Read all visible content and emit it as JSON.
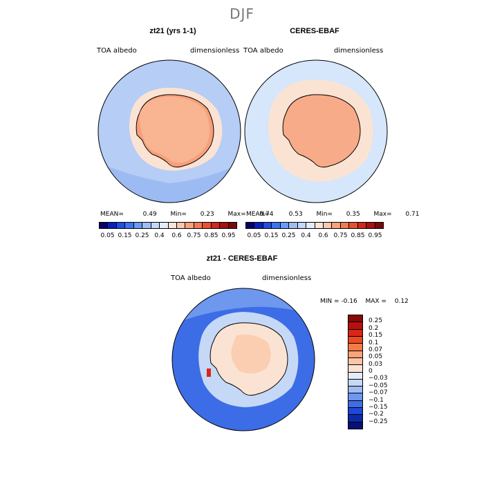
{
  "season": "DJF",
  "panels": [
    {
      "title": "zt21 (yrs 1-1)",
      "left_label": "TOA albedo",
      "right_label": "dimensionless",
      "stats": {
        "mean_label": "MEAN=",
        "mean": "0.49",
        "min_label": "Min=",
        "min": "0.23",
        "max_label": "Max=",
        "max": "0.74"
      }
    },
    {
      "title": "CERES-EBAF",
      "left_label": "TOA albedo",
      "right_label": "dimensionless",
      "stats": {
        "mean_label": "MEAN=",
        "mean": "0.53",
        "min_label": "Min=",
        "min": "0.35",
        "max_label": "Max=",
        "max": "0.71"
      }
    }
  ],
  "colorbar": {
    "ticks": [
      "0.05",
      "0.15",
      "0.25",
      "0.4",
      "0.6",
      "0.75",
      "0.85",
      "0.95"
    ],
    "colors": [
      "#08006b",
      "#0a1fb8",
      "#1d4fe0",
      "#3d74f0",
      "#6b9bf3",
      "#9dbef5",
      "#c5d8f7",
      "#e3ecf8",
      "#fbe5d6",
      "#fbc7ad",
      "#f8a27e",
      "#f27b52",
      "#e55132",
      "#cf2a1c",
      "#a51212",
      "#7a0a0a"
    ]
  },
  "diff": {
    "title": "zt21 - CERES-EBAF",
    "left_label": "TOA albedo",
    "right_label": "dimensionless",
    "min_label": "MIN =",
    "min": "-0.16",
    "max_label": "MAX =",
    "max": "0.12",
    "ticks": [
      "0.25",
      "0.2",
      "0.15",
      "0.1",
      "0.07",
      "0.05",
      "0.03",
      "0",
      "−0.03",
      "−0.05",
      "−0.07",
      "−0.1",
      "−0.15",
      "−0.2",
      "−0.25"
    ],
    "colors": [
      "#8a0808",
      "#b81010",
      "#d92616",
      "#ee4a22",
      "#f67a45",
      "#f9a37a",
      "#fbc5a6",
      "#fce2d2",
      "#e3ecf8",
      "#c5d8f6",
      "#9dbdf3",
      "#6e97ee",
      "#3f6de6",
      "#1d48d8",
      "#0c2aa8",
      "#05117a"
    ]
  },
  "colors": {
    "ocean_model": "#b6cdf5",
    "ocean_obs": "#d6e6fb",
    "ocean_diff": "#3c6de6",
    "ice_model": "#f79f7a",
    "ice_obs": "#f7ab88",
    "ice_diff": "#fbe3d3"
  }
}
